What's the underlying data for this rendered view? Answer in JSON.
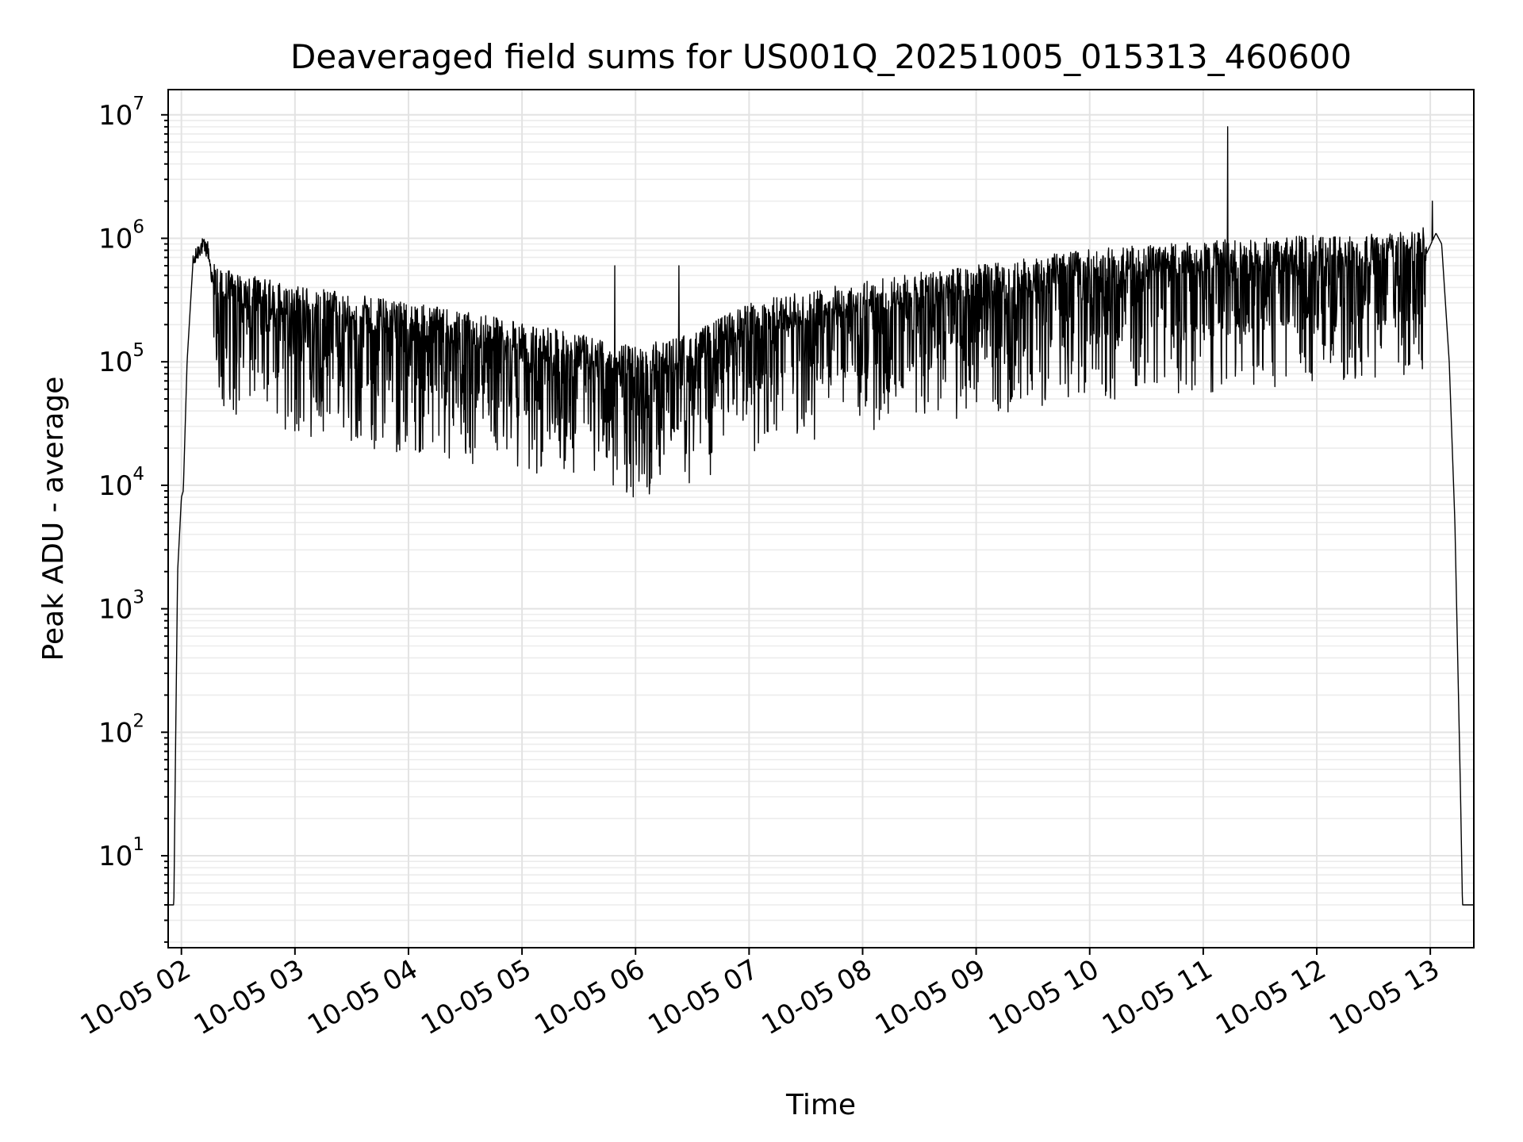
{
  "chart_data": {
    "type": "line",
    "title": "Deaveraged field sums for US001Q_20251005_015313_460600",
    "xlabel": "Time",
    "ylabel": "Peak ADU - average",
    "yscale": "log",
    "grid": true,
    "grid_minor": true,
    "legend": "none",
    "line_color": "#000000",
    "xlim": [
      "2025-10-05 01:53",
      "2025-10-05 13:23"
    ],
    "ylim": [
      1.8,
      16000000
    ],
    "x_ticks": [
      {
        "value": "2025-10-05 02:00",
        "label": "10-05 02"
      },
      {
        "value": "2025-10-05 03:00",
        "label": "10-05 03"
      },
      {
        "value": "2025-10-05 04:00",
        "label": "10-05 04"
      },
      {
        "value": "2025-10-05 05:00",
        "label": "10-05 05"
      },
      {
        "value": "2025-10-05 06:00",
        "label": "10-05 06"
      },
      {
        "value": "2025-10-05 07:00",
        "label": "10-05 07"
      },
      {
        "value": "2025-10-05 08:00",
        "label": "10-05 08"
      },
      {
        "value": "2025-10-05 09:00",
        "label": "10-05 09"
      },
      {
        "value": "2025-10-05 10:00",
        "label": "10-05 10"
      },
      {
        "value": "2025-10-05 11:00",
        "label": "10-05 11"
      },
      {
        "value": "2025-10-05 12:00",
        "label": "10-05 12"
      },
      {
        "value": "2025-10-05 13:00",
        "label": "10-05 13"
      }
    ],
    "y_ticks": [
      {
        "value": 10,
        "base": "10",
        "exp": "1"
      },
      {
        "value": 100,
        "base": "10",
        "exp": "2"
      },
      {
        "value": 1000,
        "base": "10",
        "exp": "3"
      },
      {
        "value": 10000,
        "base": "10",
        "exp": "4"
      },
      {
        "value": 100000,
        "base": "10",
        "exp": "5"
      },
      {
        "value": 1000000,
        "base": "10",
        "exp": "6"
      },
      {
        "value": 10000000,
        "base": "10",
        "exp": "7"
      }
    ],
    "series": [
      {
        "noisy": true,
        "points": [
          [
            "2025-10-05 01:53",
            4
          ],
          [
            "2025-10-05 01:56",
            4
          ],
          [
            "2025-10-05 01:57",
            100
          ],
          [
            "2025-10-05 01:58",
            2000
          ],
          [
            "2025-10-05 02:00",
            8000
          ],
          [
            "2025-10-05 02:01",
            9000
          ],
          [
            "2025-10-05 02:03",
            100000
          ],
          [
            "2025-10-05 02:06",
            600000
          ],
          [
            "2025-10-05 02:10",
            850000
          ],
          [
            "2025-10-05 02:14",
            800000
          ],
          [
            "2025-10-05 02:18",
            300000
          ],
          [
            "2025-10-05 02:30",
            280000
          ],
          [
            "2025-10-05 03:00",
            220000
          ],
          [
            "2025-10-05 04:00",
            160000
          ],
          [
            "2025-10-05 05:00",
            110000
          ],
          [
            "2025-10-05 06:00",
            70000
          ],
          [
            "2025-10-05 06:30",
            90000
          ],
          [
            "2025-10-05 07:00",
            160000
          ],
          [
            "2025-10-05 08:00",
            240000
          ],
          [
            "2025-10-05 09:00",
            320000
          ],
          [
            "2025-10-05 10:00",
            430000
          ],
          [
            "2025-10-05 11:00",
            500000
          ],
          [
            "2025-10-05 12:00",
            560000
          ],
          [
            "2025-10-05 12:55",
            600000
          ],
          [
            "2025-10-05 13:03",
            1100000
          ],
          [
            "2025-10-05 13:06",
            900000
          ],
          [
            "2025-10-05 13:08",
            300000
          ],
          [
            "2025-10-05 13:10",
            100000
          ],
          [
            "2025-10-05 13:13",
            5000
          ],
          [
            "2025-10-05 13:16",
            30
          ],
          [
            "2025-10-05 13:17",
            4
          ],
          [
            "2025-10-05 13:23",
            4
          ]
        ],
        "spikes": [
          [
            "2025-10-05 11:13",
            8000000
          ],
          [
            "2025-10-05 13:01",
            2000000
          ],
          [
            "2025-10-05 05:49",
            600000
          ],
          [
            "2025-10-05 06:23",
            600000
          ],
          [
            "2025-10-05 04:34",
            15000
          ],
          [
            "2025-10-05 05:57",
            15000
          ]
        ]
      }
    ]
  }
}
